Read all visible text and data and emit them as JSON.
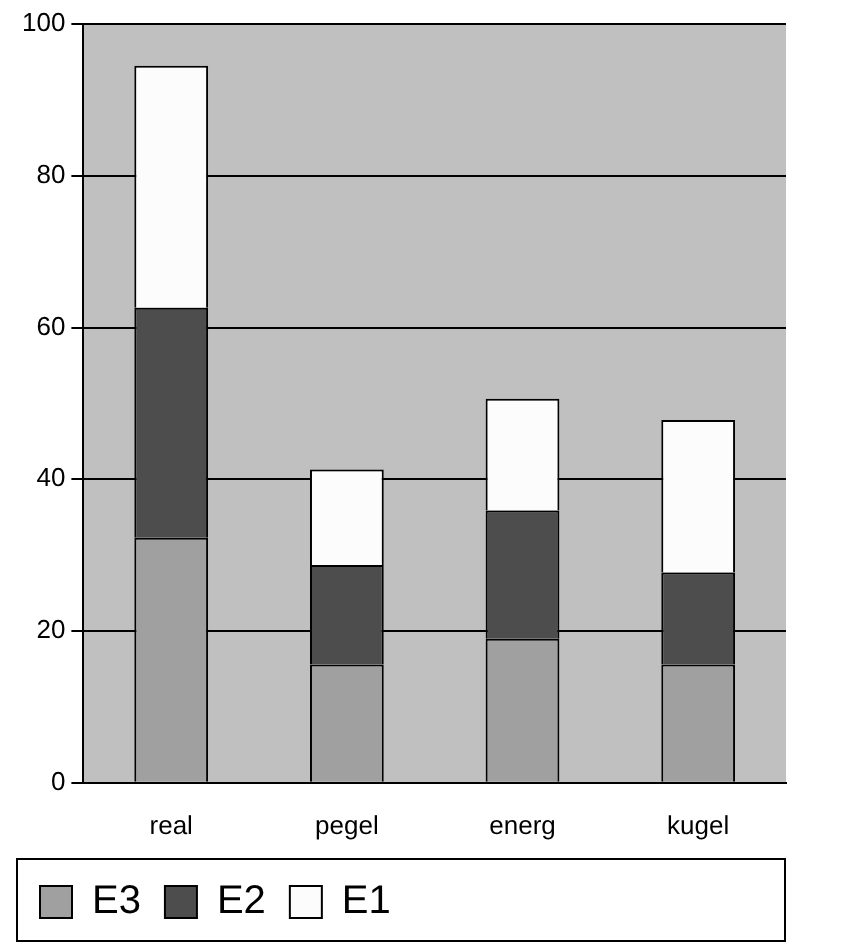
{
  "chart_data": {
    "type": "bar",
    "stacked": true,
    "categories": [
      "real",
      "pegel",
      "energ",
      "kugel"
    ],
    "series": [
      {
        "name": "E3",
        "color": "#a0a0a0",
        "values": [
          32.3,
          15.6,
          19.0,
          15.6
        ]
      },
      {
        "name": "E2",
        "color": "#4d4d4d",
        "values": [
          30.3,
          13.1,
          16.9,
          12.1
        ]
      },
      {
        "name": "E1",
        "color": "#fcfcfc",
        "values": [
          31.9,
          12.6,
          14.7,
          20.1
        ]
      }
    ],
    "ylim": [
      0,
      100
    ],
    "yticks": [
      0,
      20,
      40,
      60,
      80,
      100
    ],
    "grid": "y",
    "legend": "bottom left"
  }
}
